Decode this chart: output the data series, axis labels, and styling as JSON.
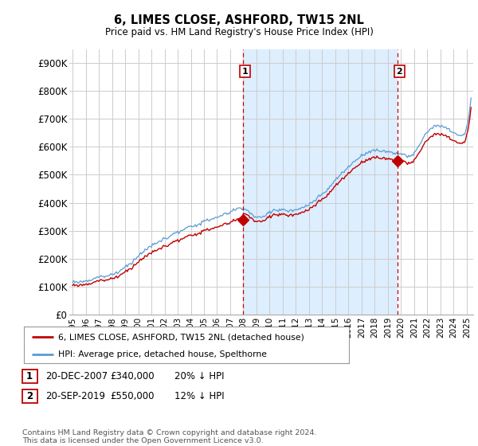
{
  "title": "6, LIMES CLOSE, ASHFORD, TW15 2NL",
  "subtitle": "Price paid vs. HM Land Registry's House Price Index (HPI)",
  "ylabel_ticks": [
    "£0",
    "£100K",
    "£200K",
    "£300K",
    "£400K",
    "£500K",
    "£600K",
    "£700K",
    "£800K",
    "£900K"
  ],
  "ytick_values": [
    0,
    100000,
    200000,
    300000,
    400000,
    500000,
    600000,
    700000,
    800000,
    900000
  ],
  "ylim": [
    0,
    950000
  ],
  "sale1_date_label": "20-DEC-2007",
  "sale1_price": 340000,
  "sale1_x": 2007.97,
  "sale1_label": "1",
  "sale1_pct": "20% ↓ HPI",
  "sale2_date_label": "20-SEP-2019",
  "sale2_price": 550000,
  "sale2_x": 2019.72,
  "sale2_label": "2",
  "sale2_pct": "12% ↓ HPI",
  "hpi_line_color": "#5b9bd5",
  "price_line_color": "#c00000",
  "vline_color": "#c00000",
  "annotation_box_color": "#c00000",
  "shade_color": "#ddeeff",
  "legend_label_price": "6, LIMES CLOSE, ASHFORD, TW15 2NL (detached house)",
  "legend_label_hpi": "HPI: Average price, detached house, Spelthorne",
  "footer_text": "Contains HM Land Registry data © Crown copyright and database right 2024.\nThis data is licensed under the Open Government Licence v3.0.",
  "background_color": "#ffffff",
  "grid_color": "#cccccc",
  "xmin": 1994.75,
  "xmax": 2025.5
}
